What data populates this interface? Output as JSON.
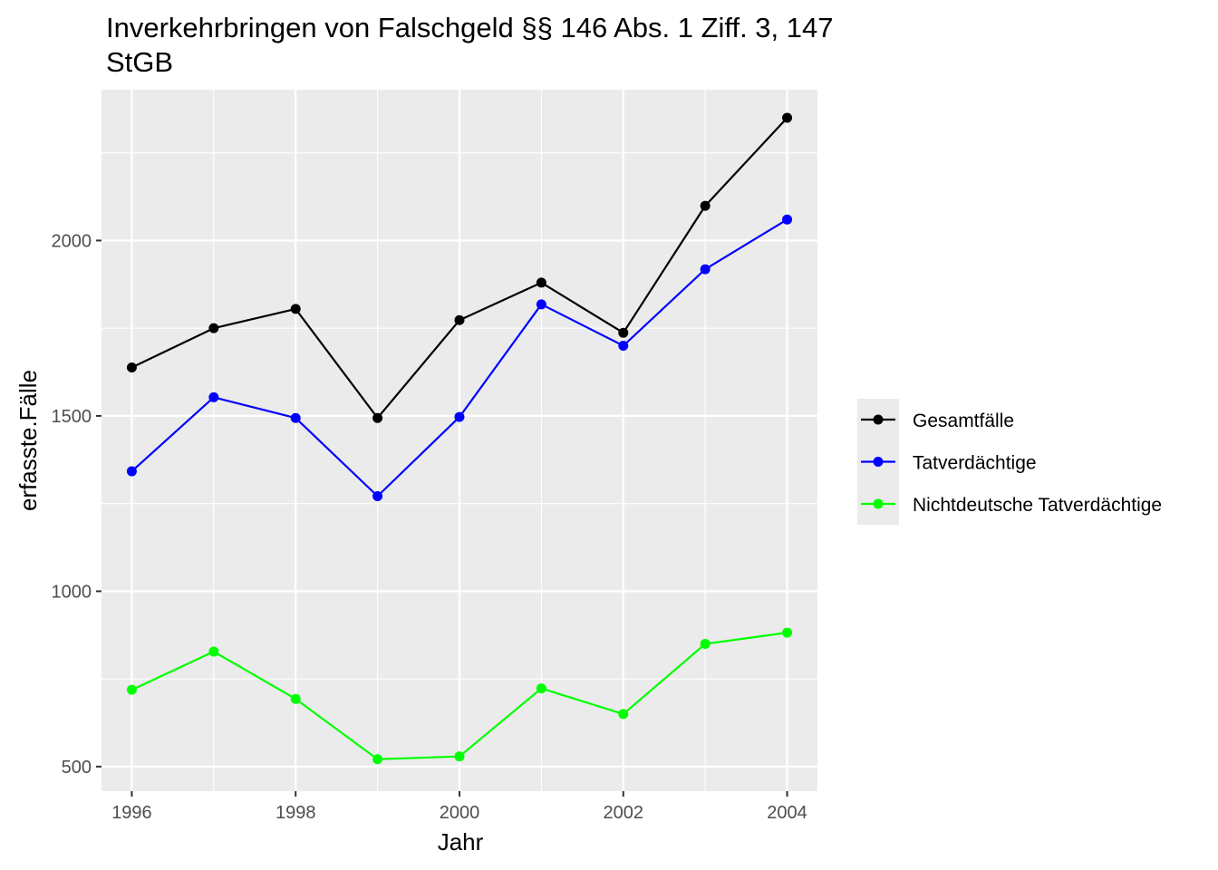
{
  "chart_data": {
    "type": "line",
    "title_lines": [
      "Inverkehrbringen von Falschgeld §§ 146 Abs. 1 Ziff. 3, 147",
      "StGB"
    ],
    "xlabel": "Jahr",
    "ylabel": "erfasste.Fälle",
    "x": [
      1996,
      1997,
      1998,
      1999,
      2000,
      2001,
      2002,
      2003,
      2004
    ],
    "x_tick_labels": [
      "1996",
      "1998",
      "2000",
      "2002",
      "2004"
    ],
    "y_tick_labels": [
      "500",
      "1000",
      "1500",
      "2000"
    ],
    "xlim": [
      1995.63,
      2004.37
    ],
    "ylim": [
      430,
      2430
    ],
    "grid": true,
    "legend_position": "right",
    "series": [
      {
        "name": "Gesamtfälle",
        "color": "#000000",
        "values": [
          1638,
          1750,
          1805,
          1494,
          1773,
          1880,
          1737,
          2099,
          2350
        ]
      },
      {
        "name": "Tatverdächtige",
        "color": "#0000ff",
        "values": [
          1342,
          1553,
          1494,
          1271,
          1497,
          1818,
          1700,
          1918,
          2060
        ]
      },
      {
        "name": "Nichtdeutsche Tatverdächtige",
        "color": "#00ff00",
        "values": [
          719,
          828,
          693,
          521,
          529,
          723,
          650,
          850,
          882
        ]
      }
    ]
  }
}
